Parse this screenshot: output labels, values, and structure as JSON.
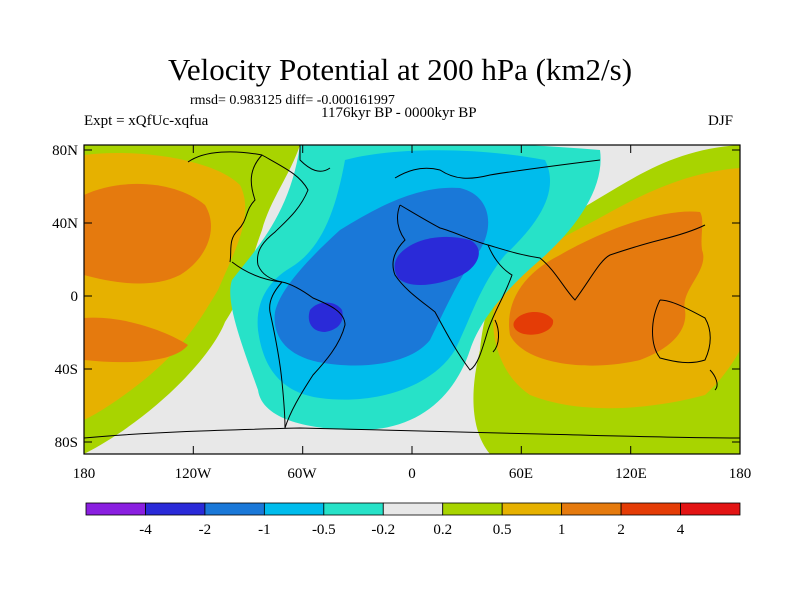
{
  "title": "Velocity Potential at 200 hPa (km2/s)",
  "stats": "rmsd= 0.983125 diff= -0.000161997",
  "period": "1176kyr BP - 0000kyr BP",
  "experiment": "Expt = xQfUc-xqfua",
  "season": "DJF",
  "map": {
    "lon_labels": [
      "180",
      "120W",
      "60W",
      "0",
      "60E",
      "120E",
      "180"
    ],
    "lat_labels": [
      "80N",
      "40N",
      "0",
      "40S",
      "80S"
    ]
  },
  "colorbar": {
    "labels": [
      "-4",
      "-2",
      "-1",
      "-0.5",
      "-0.2",
      "0.2",
      "0.5",
      "1",
      "2",
      "4"
    ],
    "colors": [
      "#8a1fe0",
      "#2a2ad8",
      "#1a78d8",
      "#00bcec",
      "#27e2c8",
      "#e8e8e8",
      "#a8d400",
      "#e6b100",
      "#e57a0e",
      "#e43c06",
      "#e31414"
    ]
  }
}
